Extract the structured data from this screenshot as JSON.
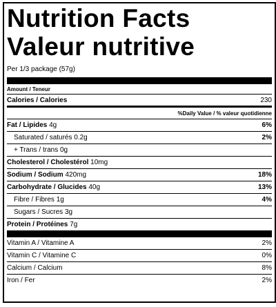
{
  "header": {
    "title_en": "Nutrition Facts",
    "title_fr": "Valeur nutritive",
    "serving": "Per 1/3 package (57g)"
  },
  "amount_header": "Amount / Teneur",
  "calories": {
    "label": "Calories / Calories",
    "value": "230"
  },
  "dv_header": "%Daily Value / % valeur quotidienne",
  "nutrients": [
    {
      "name": "Fat / Lipides",
      "amount": "4g",
      "dv": "6%",
      "sub": [
        {
          "name": "Saturated / saturés",
          "amount": "0.2g",
          "dv": "2%"
        },
        {
          "name": "+ Trans / trans",
          "amount": "0g"
        }
      ]
    },
    {
      "name": "Cholesterol / Cholestérol",
      "amount": "10mg"
    },
    {
      "name": "Sodium / Sodium",
      "amount": "420mg",
      "dv": "18%"
    },
    {
      "name": "Carbohydrate / Glucides",
      "amount": "40g",
      "dv": "13%",
      "sub": [
        {
          "name": "Fibre / Fibres",
          "amount": "1g",
          "dv": "4%"
        },
        {
          "name": "Sugars / Sucres",
          "amount": "3g"
        }
      ]
    },
    {
      "name": "Protein / Protéines",
      "amount": "7g"
    }
  ],
  "vitamins": [
    {
      "name": "Vitamin A / Vitamine A",
      "dv": "2%"
    },
    {
      "name": "Vitamin C / Vitamine C",
      "dv": "0%"
    },
    {
      "name": "Calcium / Calcium",
      "dv": "8%"
    },
    {
      "name": "Iron / Fer",
      "dv": "2%"
    }
  ]
}
